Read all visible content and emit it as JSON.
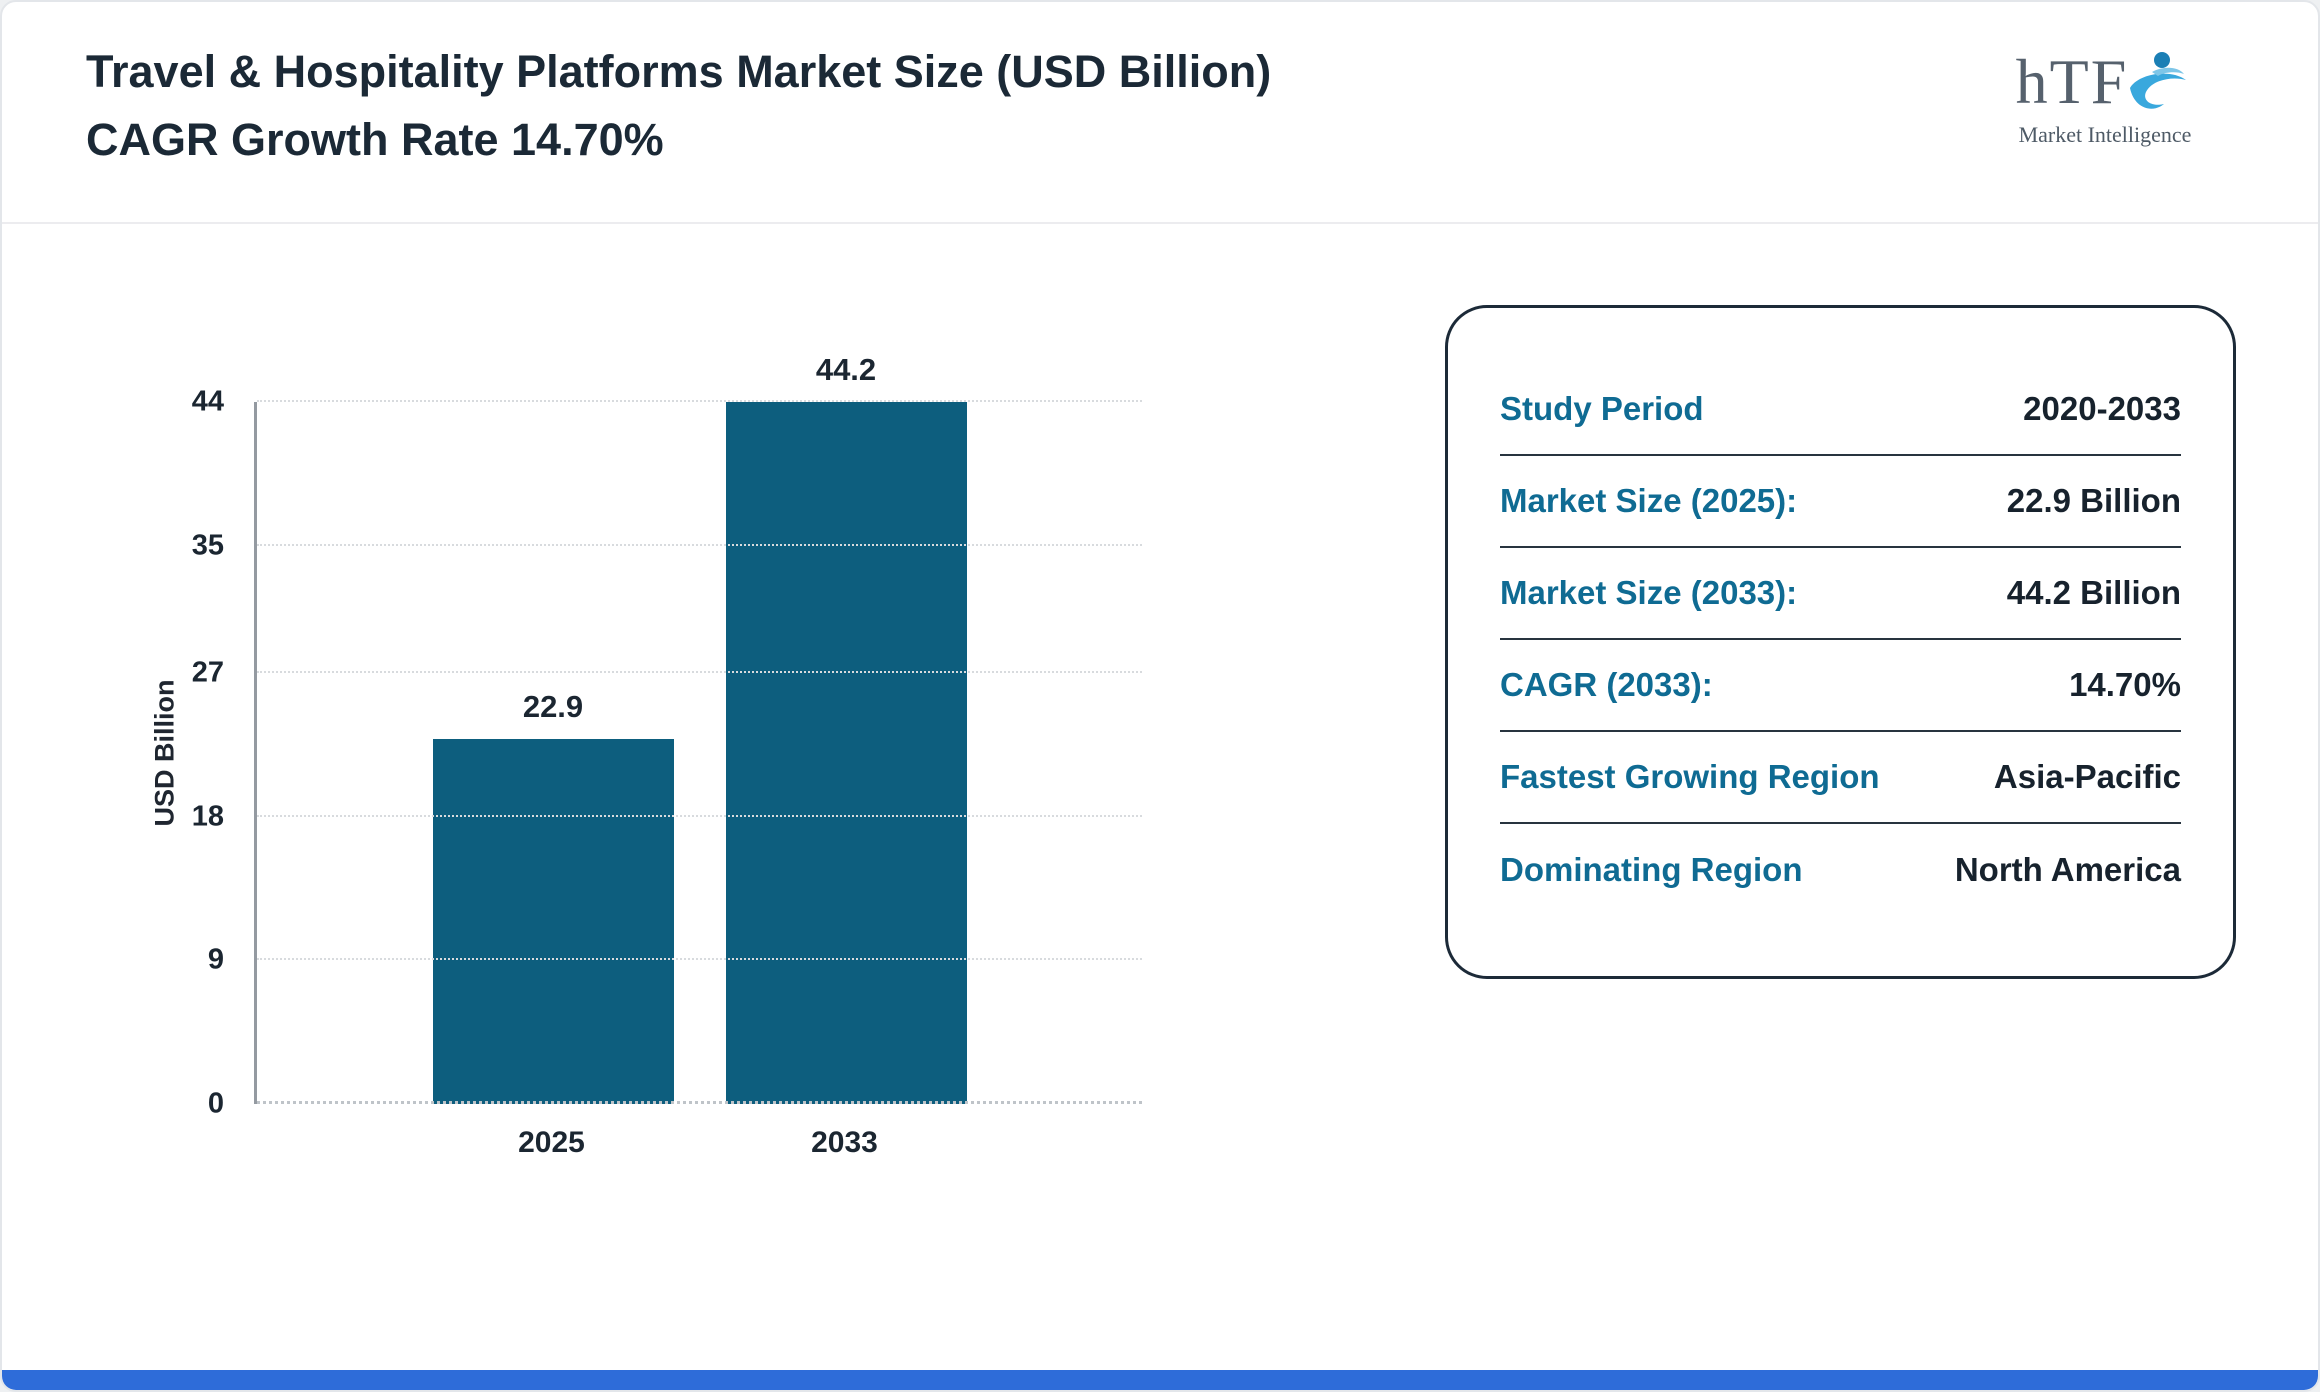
{
  "header": {
    "title": "Travel & Hospitality Platforms Market Size (USD Billion) CAGR Growth Rate 14.70%",
    "logo": {
      "name": "hTF",
      "tagline": "Market Intelligence"
    }
  },
  "chart_data": {
    "type": "bar",
    "title": "Travel & Hospitality Platforms Market Size (USD Billion) CAGR Growth Rate 14.70%",
    "categories": [
      "2025",
      "2033"
    ],
    "values": [
      22.9,
      44.2
    ],
    "xlabel": "",
    "ylabel": "USD Billion",
    "yticks": [
      0,
      9,
      18,
      27,
      35,
      44
    ],
    "ylim": [
      0,
      44
    ],
    "grid": "dotted horizontal",
    "legend": "none",
    "bar_color": "#0d5e7e"
  },
  "info_card": {
    "rows": [
      {
        "label": "Study Period",
        "value": "2020-2033"
      },
      {
        "label": "Market Size (2025):",
        "value": "22.9 Billion"
      },
      {
        "label": "Market Size (2033):",
        "value": "44.2 Billion"
      },
      {
        "label": "CAGR (2033):",
        "value": "14.70%"
      },
      {
        "label": "Fastest Growing Region",
        "value": "Asia-Pacific"
      },
      {
        "label": "Dominating Region",
        "value": "North America"
      }
    ]
  },
  "colors": {
    "bar": "#0d5e7e",
    "card_label": "#0f6b93",
    "text_dark": "#1b2936",
    "accent_bottom_bar": "#2e6cd9"
  }
}
